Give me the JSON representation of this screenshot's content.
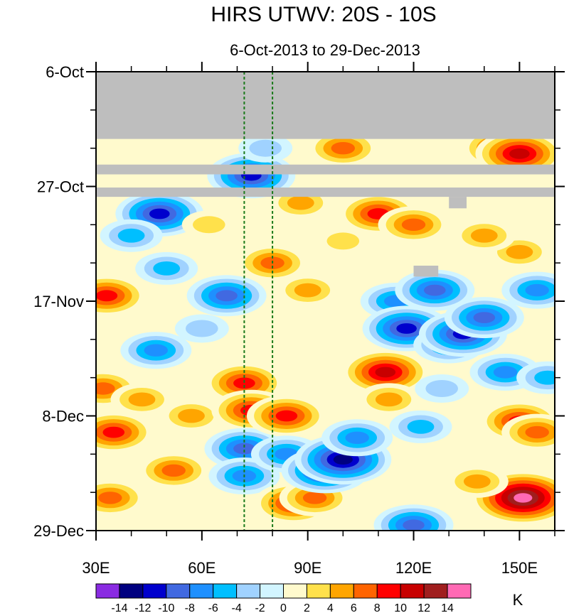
{
  "chart_data": {
    "type": "heatmap",
    "title": "HIRS UTWV: 20S - 10S",
    "subtitle": "6-Oct-2013 to 29-Dec-2013",
    "xlabel": "",
    "ylabel": "",
    "xlim": [
      30,
      160
    ],
    "x_ticks": [
      {
        "value": 30,
        "label": "30E"
      },
      {
        "value": 60,
        "label": "60E"
      },
      {
        "value": 90,
        "label": "90E"
      },
      {
        "value": 120,
        "label": "120E"
      },
      {
        "value": 150,
        "label": "150E"
      }
    ],
    "ylim_days": [
      0,
      84
    ],
    "y_ticks": [
      {
        "value": 0,
        "label": "6-Oct"
      },
      {
        "value": 21,
        "label": "27-Oct"
      },
      {
        "value": 42,
        "label": "17-Nov"
      },
      {
        "value": 63,
        "label": "8-Dec"
      },
      {
        "value": 84,
        "label": "29-Dec"
      }
    ],
    "reference_lines_lon": [
      72,
      80
    ],
    "missing_data": [
      {
        "lon": [
          30,
          160
        ],
        "day": [
          0,
          12.3
        ]
      },
      {
        "lon": [
          30,
          160
        ],
        "day": [
          17,
          18.8
        ]
      },
      {
        "lon": [
          30,
          160
        ],
        "day": [
          21.2,
          22.9
        ]
      },
      {
        "lon": [
          130,
          135
        ],
        "day": [
          22.9,
          25
        ]
      },
      {
        "lon": [
          120,
          127
        ],
        "day": [
          35.5,
          37.5
        ]
      }
    ],
    "colorbar": {
      "unit": "K",
      "levels": [
        -14,
        -12,
        -10,
        -8,
        -6,
        -4,
        -2,
        0,
        2,
        4,
        6,
        8,
        10,
        12,
        14
      ],
      "labels": [
        "-14",
        "-12",
        "-10",
        "-8",
        "-6",
        "-4",
        "-2",
        "0",
        "2",
        "4",
        "6",
        "8",
        "10",
        "12",
        "14"
      ],
      "colors": [
        "#8a2be2",
        "#000080",
        "#0000cd",
        "#4169e1",
        "#1e90ff",
        "#00bfff",
        "#a0d2ff",
        "#d2f5ff",
        "#fffacd",
        "#ffe14b",
        "#ffa500",
        "#ff6400",
        "#ff0000",
        "#c80000",
        "#a01e1e",
        "#ff69b4"
      ]
    },
    "anomalies": [
      {
        "lon": 33,
        "day": 41,
        "value": 10
      },
      {
        "lon": 32,
        "day": 58,
        "value": 8
      },
      {
        "lon": 35,
        "day": 66,
        "value": 9
      },
      {
        "lon": 34,
        "day": 78,
        "value": 7
      },
      {
        "lon": 48,
        "day": 26,
        "value": -11
      },
      {
        "lon": 40,
        "day": 30,
        "value": -6
      },
      {
        "lon": 47,
        "day": 51,
        "value": -8
      },
      {
        "lon": 43,
        "day": 60,
        "value": 5
      },
      {
        "lon": 50,
        "day": 36,
        "value": -5
      },
      {
        "lon": 52,
        "day": 73,
        "value": 8
      },
      {
        "lon": 57,
        "day": 63,
        "value": 6
      },
      {
        "lon": 60,
        "day": 47,
        "value": -4
      },
      {
        "lon": 67,
        "day": 41,
        "value": -9
      },
      {
        "lon": 72,
        "day": 57,
        "value": 10
      },
      {
        "lon": 74,
        "day": 62,
        "value": 9
      },
      {
        "lon": 72,
        "day": 69,
        "value": -10
      },
      {
        "lon": 72,
        "day": 74,
        "value": -8
      },
      {
        "lon": 74,
        "day": 19,
        "value": -12
      },
      {
        "lon": 78,
        "day": 14,
        "value": -4
      },
      {
        "lon": 80,
        "day": 35,
        "value": 7
      },
      {
        "lon": 84,
        "day": 63,
        "value": 10
      },
      {
        "lon": 86,
        "day": 79,
        "value": 10
      },
      {
        "lon": 84,
        "day": 70,
        "value": -8
      },
      {
        "lon": 90,
        "day": 40,
        "value": 6
      },
      {
        "lon": 92,
        "day": 78,
        "value": 8
      },
      {
        "lon": 95,
        "day": 73,
        "value": -12
      },
      {
        "lon": 100,
        "day": 71,
        "value": -13
      },
      {
        "lon": 100,
        "day": 14,
        "value": 8
      },
      {
        "lon": 104,
        "day": 67,
        "value": -7
      },
      {
        "lon": 100,
        "day": 31,
        "value": 4
      },
      {
        "lon": 110,
        "day": 26,
        "value": 9
      },
      {
        "lon": 112,
        "day": 55,
        "value": 11
      },
      {
        "lon": 113,
        "day": 60,
        "value": 6
      },
      {
        "lon": 115,
        "day": 42,
        "value": -8
      },
      {
        "lon": 118,
        "day": 47,
        "value": -12
      },
      {
        "lon": 120,
        "day": 28,
        "value": 7
      },
      {
        "lon": 122,
        "day": 65,
        "value": -6
      },
      {
        "lon": 120,
        "day": 83,
        "value": -9
      },
      {
        "lon": 126,
        "day": 40,
        "value": -10
      },
      {
        "lon": 130,
        "day": 50,
        "value": -8
      },
      {
        "lon": 134,
        "day": 48,
        "value": -11
      },
      {
        "lon": 140,
        "day": 45,
        "value": -9
      },
      {
        "lon": 145,
        "day": 14,
        "value": 10
      },
      {
        "lon": 150,
        "day": 15,
        "value": 12
      },
      {
        "lon": 150,
        "day": 33,
        "value": 6
      },
      {
        "lon": 155,
        "day": 40,
        "value": -8
      },
      {
        "lon": 146,
        "day": 55,
        "value": -7
      },
      {
        "lon": 150,
        "day": 64,
        "value": 9
      },
      {
        "lon": 155,
        "day": 66,
        "value": 8
      },
      {
        "lon": 150,
        "day": 79,
        "value": 12
      },
      {
        "lon": 151,
        "day": 78,
        "value": 15
      },
      {
        "lon": 158,
        "day": 56,
        "value": -5
      },
      {
        "lon": 138,
        "day": 75,
        "value": 6
      },
      {
        "lon": 128,
        "day": 58,
        "value": -4
      },
      {
        "lon": 62,
        "day": 28,
        "value": 4
      },
      {
        "lon": 88,
        "day": 24,
        "value": 5
      },
      {
        "lon": 140,
        "day": 30,
        "value": 5
      }
    ]
  }
}
